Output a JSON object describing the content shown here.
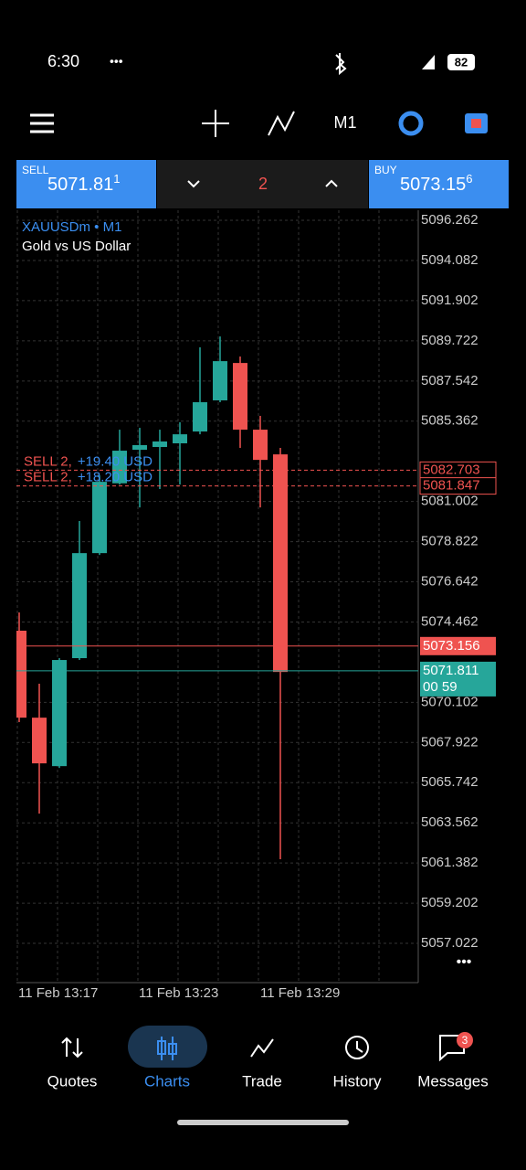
{
  "status_bar": {
    "time": "6:30",
    "dots": "•••",
    "battery": "82"
  },
  "toolbar": {
    "timeframe": "M1"
  },
  "trade_panel": {
    "sell_label": "SELL",
    "sell_price": "5071.81",
    "sell_price_sup": "1",
    "volume": "2",
    "buy_label": "BUY",
    "buy_price": "5073.15",
    "buy_price_sup": "6"
  },
  "chart": {
    "type": "candlestick",
    "symbol": "XAUUSDm • M1",
    "description": "Gold vs US Dollar",
    "ylim": [
      5054.89,
      5096.81
    ],
    "yticks": [
      5096.262,
      5094.082,
      5091.902,
      5089.722,
      5087.542,
      5085.362,
      5081.002,
      5078.822,
      5076.642,
      5074.462,
      5070.102,
      5067.922,
      5065.742,
      5063.562,
      5061.382,
      5059.202,
      5057.022
    ],
    "xticks": [
      "11 Feb 13:17",
      "11 Feb 13:23",
      "11 Feb 13:29"
    ],
    "up_color": "#26a69a",
    "down_color": "#ef5350",
    "candles": [
      {
        "open": 5073.99,
        "high": 5074.98,
        "low": 5069.03,
        "close": 5069.27
      },
      {
        "open": 5069.27,
        "high": 5071.11,
        "low": 5064.06,
        "close": 5066.79
      },
      {
        "open": 5066.64,
        "high": 5072.5,
        "low": 5066.54,
        "close": 5072.4
      },
      {
        "open": 5072.5,
        "high": 5079.94,
        "low": 5072.4,
        "close": 5078.2
      },
      {
        "open": 5078.2,
        "high": 5082.42,
        "low": 5078.1,
        "close": 5082.07
      },
      {
        "open": 5081.99,
        "high": 5084.9,
        "low": 5081.92,
        "close": 5083.76
      },
      {
        "open": 5083.81,
        "high": 5085.0,
        "low": 5080.68,
        "close": 5084.06
      },
      {
        "open": 5083.96,
        "high": 5084.9,
        "low": 5081.68,
        "close": 5084.26
      },
      {
        "open": 5084.16,
        "high": 5085.3,
        "low": 5081.92,
        "close": 5084.65
      },
      {
        "open": 5084.8,
        "high": 5089.37,
        "low": 5084.65,
        "close": 5086.39
      },
      {
        "open": 5086.49,
        "high": 5089.96,
        "low": 5086.39,
        "close": 5088.62
      },
      {
        "open": 5088.52,
        "high": 5088.87,
        "low": 5083.91,
        "close": 5084.9
      },
      {
        "open": 5084.9,
        "high": 5085.65,
        "low": 5080.68,
        "close": 5083.26
      },
      {
        "open": 5083.56,
        "high": 5083.91,
        "low": 5061.59,
        "close": 5071.75
      }
    ],
    "orders": [
      {
        "side": "SELL 2,",
        "profit": "+19.40 USD",
        "price": 5082.703
      },
      {
        "side": "SELL 2,",
        "profit": "+18.20 USD",
        "price": 5081.847
      }
    ],
    "ask": 5073.156,
    "bid": 5071.811,
    "countdown": "00 59",
    "more": "•••"
  },
  "nav": {
    "items": [
      "Quotes",
      "Charts",
      "Trade",
      "History",
      "Messages"
    ],
    "badge": "3"
  }
}
